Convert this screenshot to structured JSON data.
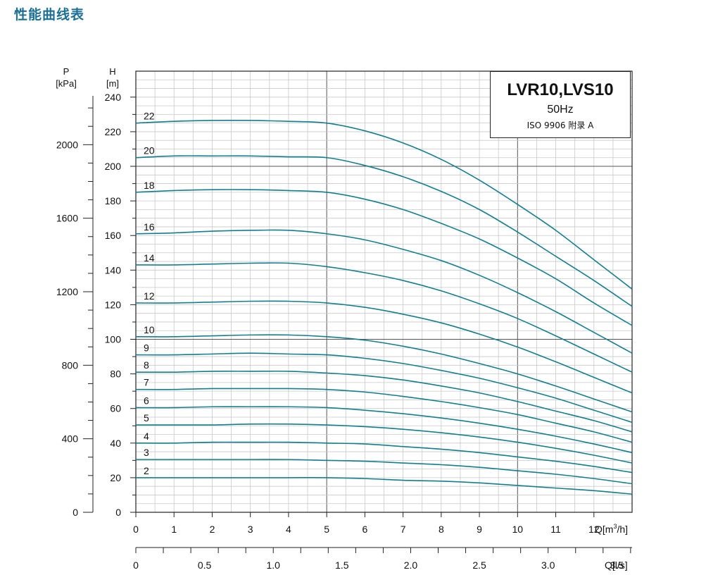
{
  "page": {
    "title": "性能曲线表"
  },
  "legend": {
    "model": "LVR10,LVS10",
    "frequency": "50Hz",
    "standard": "ISO 9906  附录 A"
  },
  "colors": {
    "curve": "#137f8e",
    "title": "#1d6f93",
    "grid": "#c9c9c9",
    "grid_major": "#555555"
  },
  "chart_data": {
    "type": "line",
    "title": "LVR10,LVS10",
    "left_axis_p": {
      "label": "P",
      "unit": "[kPa]",
      "ticks": [
        0,
        400,
        800,
        1200,
        1600,
        2000
      ],
      "range": [
        0,
        2400
      ]
    },
    "left_axis_h": {
      "label": "H",
      "unit": "[m]",
      "ticks": [
        0,
        20,
        40,
        60,
        80,
        100,
        120,
        140,
        160,
        180,
        200,
        220,
        240
      ],
      "range": [
        0,
        255
      ]
    },
    "x_axis_q": {
      "label": "Q[m³/h]",
      "label_main": "Q[m",
      "label_sup": "3",
      "label_end": "/h]",
      "ticks": [
        "0",
        "1",
        "2",
        "3",
        "4",
        "5",
        "6",
        "7",
        "8",
        "9",
        "10",
        "11",
        "12"
      ],
      "range": [
        0,
        13
      ]
    },
    "x_axis_ls": {
      "label": "Q[l/s]",
      "ticks": [
        "0",
        "0.5",
        "1.0",
        "1.5",
        "2.0",
        "2.5",
        "3.0",
        "3.5"
      ],
      "values": [
        0,
        0.5,
        1,
        1.5,
        2,
        2.5,
        3,
        3.5
      ]
    },
    "grid": true,
    "x": [
      0,
      1,
      2,
      3,
      4,
      5,
      6,
      7,
      8,
      9,
      10,
      11,
      12,
      13
    ],
    "series": [
      {
        "name": "22",
        "values": [
          225,
          226,
          226.5,
          226.5,
          226,
          225,
          220.5,
          213.5,
          204,
          192,
          178,
          163,
          146,
          129
        ]
      },
      {
        "name": "20",
        "values": [
          205,
          206,
          206,
          206,
          205.5,
          205,
          200.5,
          194,
          185.5,
          175,
          162,
          148,
          134,
          119
        ]
      },
      {
        "name": "18",
        "values": [
          185,
          186,
          186.5,
          186.5,
          186,
          185,
          181,
          175,
          167,
          158,
          147,
          135,
          121,
          108
        ]
      },
      {
        "name": "16",
        "values": [
          161,
          161.5,
          162.5,
          163,
          163,
          161,
          157.5,
          152,
          145.5,
          137,
          127,
          116,
          104,
          92
        ]
      },
      {
        "name": "14",
        "values": [
          143,
          143,
          143.5,
          144,
          144,
          142,
          138.5,
          134,
          128,
          120.5,
          112,
          102,
          91.5,
          81
        ]
      },
      {
        "name": "12",
        "values": [
          121,
          121,
          121.5,
          122,
          122,
          121,
          118.5,
          114.5,
          109.5,
          103,
          95.5,
          87,
          78,
          69
        ]
      },
      {
        "name": "10",
        "values": [
          101.5,
          101.5,
          102,
          102.5,
          102.5,
          101.5,
          99.5,
          96,
          91.5,
          86,
          80,
          73,
          65.5,
          58
        ]
      },
      {
        "name": "9",
        "values": [
          91,
          91,
          91.5,
          92,
          91.5,
          91,
          89,
          86,
          82,
          77.5,
          72,
          66,
          59,
          52
        ]
      },
      {
        "name": "8",
        "values": [
          81,
          81,
          81.5,
          81.5,
          81.5,
          80.5,
          79,
          76.5,
          73,
          69,
          64,
          58.5,
          53,
          46.5
        ]
      },
      {
        "name": "7",
        "values": [
          71,
          71,
          71.5,
          71.5,
          71.5,
          71,
          69.5,
          67,
          64,
          60.5,
          56.5,
          51.5,
          46.5,
          40.5
        ]
      },
      {
        "name": "6",
        "values": [
          60.5,
          60.5,
          61,
          61,
          61,
          60.5,
          59,
          57,
          54.5,
          51.5,
          48,
          44,
          39.5,
          34.5
        ]
      },
      {
        "name": "5",
        "values": [
          50.5,
          50.5,
          50.5,
          51,
          51,
          50.5,
          49.5,
          48,
          46,
          43.5,
          40.5,
          37,
          33,
          28.5
        ]
      },
      {
        "name": "4",
        "values": [
          40,
          40,
          40.5,
          40.5,
          40.5,
          40,
          39.5,
          38,
          36.5,
          34.5,
          32,
          29.5,
          26.5,
          23
        ]
      },
      {
        "name": "3",
        "values": [
          30.5,
          30.5,
          30.5,
          30.5,
          30.5,
          30,
          29.5,
          28.5,
          27.5,
          26,
          24,
          22,
          19.5,
          16.5
        ]
      },
      {
        "name": "2",
        "values": [
          20,
          20,
          20,
          20,
          20,
          20,
          19.5,
          18.5,
          18,
          17,
          15.5,
          14,
          12.5,
          10.5
        ]
      }
    ]
  }
}
